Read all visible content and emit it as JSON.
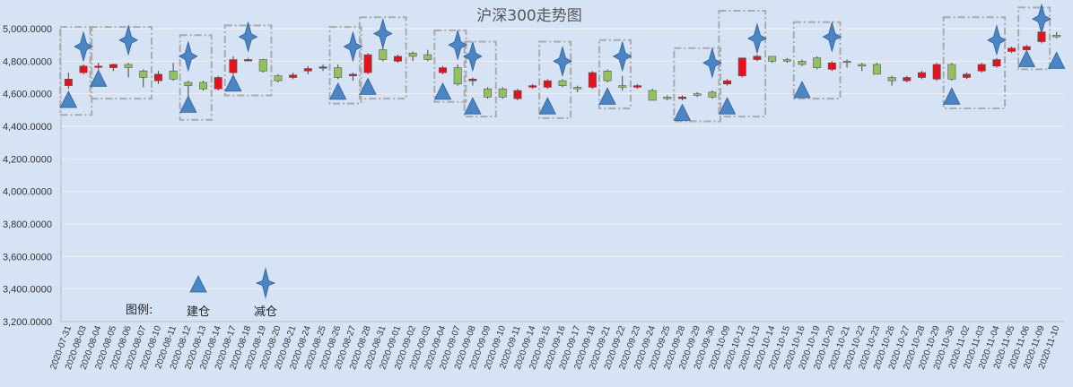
{
  "chart_data": {
    "type": "candlestick",
    "title": "沪深300走势图",
    "ylim": [
      3200,
      5000
    ],
    "yticks": [
      3200,
      3400,
      3600,
      3800,
      4000,
      4200,
      4400,
      4600,
      4800,
      5000
    ],
    "ytick_labels": [
      "3,200.0000",
      "3,400.0000",
      "3,600.0000",
      "3,800.0000",
      "4,000.0000",
      "4,200.0000",
      "4,400.0000",
      "4,600.0000",
      "4,800.0000",
      "5,000.0000"
    ],
    "grid": true,
    "colors": {
      "up": "#e8101a",
      "down": "#92c35a",
      "marker": "#4a86c5",
      "grid": "#f0f0f0",
      "box": "#aaaaaa",
      "background": "#d6e3f5"
    },
    "legend": {
      "title": "图例:",
      "items": [
        {
          "label": "建仓",
          "marker": "triangle-icon"
        },
        {
          "label": "减仓",
          "marker": "star-icon"
        }
      ]
    },
    "candles": [
      {
        "d": "2020-07-31",
        "o": 4650,
        "c": 4690,
        "h": 4730,
        "l": 4630
      },
      {
        "d": "2020-08-03",
        "o": 4730,
        "c": 4770,
        "h": 4780,
        "l": 4720
      },
      {
        "d": "2020-08-04",
        "o": 4770,
        "c": 4770,
        "h": 4790,
        "l": 4750
      },
      {
        "d": "2020-08-05",
        "o": 4760,
        "c": 4780,
        "h": 4785,
        "l": 4740
      },
      {
        "d": "2020-08-06",
        "o": 4780,
        "c": 4760,
        "h": 4790,
        "l": 4700
      },
      {
        "d": "2020-08-07",
        "o": 4740,
        "c": 4700,
        "h": 4750,
        "l": 4640
      },
      {
        "d": "2020-08-10",
        "o": 4680,
        "c": 4720,
        "h": 4740,
        "l": 4660
      },
      {
        "d": "2020-08-11",
        "o": 4740,
        "c": 4690,
        "h": 4790,
        "l": 4680
      },
      {
        "d": "2020-08-12",
        "o": 4670,
        "c": 4650,
        "h": 4680,
        "l": 4580
      },
      {
        "d": "2020-08-13",
        "o": 4670,
        "c": 4630,
        "h": 4680,
        "l": 4620
      },
      {
        "d": "2020-08-14",
        "o": 4630,
        "c": 4700,
        "h": 4710,
        "l": 4620
      },
      {
        "d": "2020-08-17",
        "o": 4730,
        "c": 4810,
        "h": 4830,
        "l": 4720
      },
      {
        "d": "2020-08-18",
        "o": 4810,
        "c": 4810,
        "h": 4820,
        "l": 4800
      },
      {
        "d": "2020-08-19",
        "o": 4810,
        "c": 4740,
        "h": 4815,
        "l": 4730
      },
      {
        "d": "2020-08-20",
        "o": 4710,
        "c": 4680,
        "h": 4720,
        "l": 4670
      },
      {
        "d": "2020-08-21",
        "o": 4700,
        "c": 4715,
        "h": 4730,
        "l": 4690
      },
      {
        "d": "2020-08-24",
        "o": 4740,
        "c": 4755,
        "h": 4770,
        "l": 4720
      },
      {
        "d": "2020-08-25",
        "o": 4760,
        "c": 4765,
        "h": 4780,
        "l": 4740
      },
      {
        "d": "2020-08-26",
        "o": 4760,
        "c": 4700,
        "h": 4780,
        "l": 4690
      },
      {
        "d": "2020-08-27",
        "o": 4710,
        "c": 4720,
        "h": 4730,
        "l": 4680
      },
      {
        "d": "2020-08-28",
        "o": 4730,
        "c": 4840,
        "h": 4850,
        "l": 4720
      },
      {
        "d": "2020-08-31",
        "o": 4870,
        "c": 4810,
        "h": 4900,
        "l": 4800
      },
      {
        "d": "2020-09-01",
        "o": 4800,
        "c": 4830,
        "h": 4840,
        "l": 4790
      },
      {
        "d": "2020-09-02",
        "o": 4850,
        "c": 4830,
        "h": 4860,
        "l": 4800
      },
      {
        "d": "2020-09-03",
        "o": 4840,
        "c": 4810,
        "h": 4870,
        "l": 4800
      },
      {
        "d": "2020-09-04",
        "o": 4730,
        "c": 4760,
        "h": 4770,
        "l": 4720
      },
      {
        "d": "2020-09-07",
        "o": 4760,
        "c": 4660,
        "h": 4780,
        "l": 4650
      },
      {
        "d": "2020-09-08",
        "o": 4680,
        "c": 4690,
        "h": 4700,
        "l": 4650
      },
      {
        "d": "2020-09-09",
        "o": 4630,
        "c": 4580,
        "h": 4640,
        "l": 4570
      },
      {
        "d": "2020-09-10",
        "o": 4630,
        "c": 4580,
        "h": 4640,
        "l": 4570
      },
      {
        "d": "2020-09-11",
        "o": 4570,
        "c": 4620,
        "h": 4630,
        "l": 4560
      },
      {
        "d": "2020-09-14",
        "o": 4640,
        "c": 4650,
        "h": 4660,
        "l": 4630
      },
      {
        "d": "2020-09-15",
        "o": 4640,
        "c": 4680,
        "h": 4690,
        "l": 4630
      },
      {
        "d": "2020-09-16",
        "o": 4680,
        "c": 4650,
        "h": 4690,
        "l": 4640
      },
      {
        "d": "2020-09-17",
        "o": 4640,
        "c": 4630,
        "h": 4650,
        "l": 4610
      },
      {
        "d": "2020-09-18",
        "o": 4640,
        "c": 4730,
        "h": 4740,
        "l": 4630
      },
      {
        "d": "2020-09-21",
        "o": 4740,
        "c": 4680,
        "h": 4750,
        "l": 4670
      },
      {
        "d": "2020-09-22",
        "o": 4650,
        "c": 4640,
        "h": 4710,
        "l": 4620
      },
      {
        "d": "2020-09-23",
        "o": 4640,
        "c": 4650,
        "h": 4660,
        "l": 4630
      },
      {
        "d": "2020-09-24",
        "o": 4620,
        "c": 4560,
        "h": 4630,
        "l": 4560
      },
      {
        "d": "2020-09-25",
        "o": 4580,
        "c": 4570,
        "h": 4590,
        "l": 4560
      },
      {
        "d": "2020-09-28",
        "o": 4570,
        "c": 4580,
        "h": 4590,
        "l": 4560
      },
      {
        "d": "2020-09-29",
        "o": 4600,
        "c": 4590,
        "h": 4610,
        "l": 4580
      },
      {
        "d": "2020-09-30",
        "o": 4610,
        "c": 4580,
        "h": 4620,
        "l": 4570
      },
      {
        "d": "2020-10-09",
        "o": 4660,
        "c": 4680,
        "h": 4690,
        "l": 4650
      },
      {
        "d": "2020-10-12",
        "o": 4710,
        "c": 4820,
        "h": 4820,
        "l": 4700
      },
      {
        "d": "2020-10-13",
        "o": 4810,
        "c": 4830,
        "h": 4840,
        "l": 4800
      },
      {
        "d": "2020-10-14",
        "o": 4830,
        "c": 4800,
        "h": 4830,
        "l": 4790
      },
      {
        "d": "2020-10-15",
        "o": 4810,
        "c": 4800,
        "h": 4820,
        "l": 4790
      },
      {
        "d": "2020-10-16",
        "o": 4800,
        "c": 4780,
        "h": 4810,
        "l": 4770
      },
      {
        "d": "2020-10-19",
        "o": 4820,
        "c": 4760,
        "h": 4830,
        "l": 4750
      },
      {
        "d": "2020-10-20",
        "o": 4750,
        "c": 4790,
        "h": 4800,
        "l": 4740
      },
      {
        "d": "2020-10-21",
        "o": 4800,
        "c": 4795,
        "h": 4810,
        "l": 4760
      },
      {
        "d": "2020-10-22",
        "o": 4780,
        "c": 4770,
        "h": 4790,
        "l": 4740
      },
      {
        "d": "2020-10-23",
        "o": 4780,
        "c": 4720,
        "h": 4790,
        "l": 4720
      },
      {
        "d": "2020-10-26",
        "o": 4700,
        "c": 4680,
        "h": 4710,
        "l": 4650
      },
      {
        "d": "2020-10-27",
        "o": 4680,
        "c": 4700,
        "h": 4710,
        "l": 4670
      },
      {
        "d": "2020-10-28",
        "o": 4700,
        "c": 4730,
        "h": 4740,
        "l": 4690
      },
      {
        "d": "2020-10-29",
        "o": 4690,
        "c": 4780,
        "h": 4790,
        "l": 4680
      },
      {
        "d": "2020-10-30",
        "o": 4780,
        "c": 4690,
        "h": 4790,
        "l": 4680
      },
      {
        "d": "2020-11-02",
        "o": 4700,
        "c": 4720,
        "h": 4730,
        "l": 4690
      },
      {
        "d": "2020-11-03",
        "o": 4740,
        "c": 4780,
        "h": 4790,
        "l": 4730
      },
      {
        "d": "2020-11-04",
        "o": 4770,
        "c": 4810,
        "h": 4820,
        "l": 4760
      },
      {
        "d": "2020-11-05",
        "o": 4860,
        "c": 4880,
        "h": 4890,
        "l": 4850
      },
      {
        "d": "2020-11-06",
        "o": 4870,
        "c": 4890,
        "h": 4900,
        "l": 4860
      },
      {
        "d": "2020-11-09",
        "o": 4920,
        "c": 4980,
        "h": 4990,
        "l": 4910
      },
      {
        "d": "2020-11-10",
        "o": 4960,
        "c": 4950,
        "h": 4980,
        "l": 4940
      }
    ],
    "tick_labels": [
      "2020-07-31",
      "2020-08-03",
      "2020-08-04",
      "2020-08-05",
      "2020-08-06",
      "2020-08-07",
      "2020-08-10",
      "2020-08-11",
      "2020-08-12",
      "2020-08-13",
      "2020-08-14",
      "2020-08-17",
      "2020-08-18",
      "2020-08-19",
      "2020-08-20",
      "2020-08-21",
      "2020-08-24",
      "2020-08-25",
      "2020-08-26",
      "2020-08-27",
      "2020-08-28",
      "2020-08-31",
      "2020-09-01",
      "2020-09-02",
      "2020-09-03",
      "2020-09-04",
      "2020-09-07",
      "2020-09-08",
      "2020-09-09",
      "2020-09-10",
      "2020-09-11",
      "2020-09-14",
      "2020-09-15",
      "2020-09-16",
      "2020-09-17",
      "2020-09-18",
      "2020-09-21",
      "2020-09-22",
      "2020-09-23",
      "2020-09-24",
      "2020-09-25",
      "2020-09-28",
      "2020-09-29",
      "2020-09-30",
      "2020-10-09",
      "2020-10-12",
      "2020-10-13",
      "2020-10-14",
      "2020-10-15",
      "2020-10-16",
      "2020-10-19",
      "2020-10-20",
      "2020-10-21",
      "2020-10-22",
      "2020-10-23",
      "2020-10-26",
      "2020-10-27",
      "2020-10-28",
      "2020-10-29",
      "2020-10-30",
      "2020-11-02",
      "2020-11-03",
      "2020-11-04",
      "2020-11-05",
      "2020-11-06",
      "2020-11-09",
      "2020-11-10"
    ],
    "buy_markers": [
      {
        "d": "2020-07-31",
        "v": 4560
      },
      {
        "d": "2020-08-04",
        "v": 4690
      },
      {
        "d": "2020-08-12",
        "v": 4530
      },
      {
        "d": "2020-08-17",
        "v": 4660
      },
      {
        "d": "2020-08-26",
        "v": 4610
      },
      {
        "d": "2020-08-28",
        "v": 4640
      },
      {
        "d": "2020-09-04",
        "v": 4610
      },
      {
        "d": "2020-09-08",
        "v": 4520
      },
      {
        "d": "2020-09-15",
        "v": 4520
      },
      {
        "d": "2020-09-21",
        "v": 4580
      },
      {
        "d": "2020-09-28",
        "v": 4480
      },
      {
        "d": "2020-10-09",
        "v": 4520
      },
      {
        "d": "2020-10-16",
        "v": 4620
      },
      {
        "d": "2020-10-30",
        "v": 4580
      },
      {
        "d": "2020-11-06",
        "v": 4810
      },
      {
        "d": "2020-11-10",
        "v": 4800
      }
    ],
    "sell_markers": [
      {
        "d": "2020-08-03",
        "v": 4890
      },
      {
        "d": "2020-08-06",
        "v": 4930
      },
      {
        "d": "2020-08-12",
        "v": 4830
      },
      {
        "d": "2020-08-18",
        "v": 4950
      },
      {
        "d": "2020-08-27",
        "v": 4890
      },
      {
        "d": "2020-08-31",
        "v": 4970
      },
      {
        "d": "2020-09-07",
        "v": 4900
      },
      {
        "d": "2020-09-08",
        "v": 4830
      },
      {
        "d": "2020-09-16",
        "v": 4800
      },
      {
        "d": "2020-09-22",
        "v": 4830
      },
      {
        "d": "2020-09-30",
        "v": 4790
      },
      {
        "d": "2020-10-13",
        "v": 4940
      },
      {
        "d": "2020-10-20",
        "v": 4950
      },
      {
        "d": "2020-11-04",
        "v": 4930
      },
      {
        "d": "2020-11-09",
        "v": 5060
      }
    ],
    "trade_boxes": [
      {
        "from": "2020-07-31",
        "to": "2020-08-03",
        "low": 4470,
        "high": 5010
      },
      {
        "from": "2020-08-04",
        "to": "2020-08-07",
        "low": 4570,
        "high": 5010
      },
      {
        "from": "2020-08-12",
        "to": "2020-08-13",
        "low": 4440,
        "high": 4960
      },
      {
        "from": "2020-08-17",
        "to": "2020-08-19",
        "low": 4590,
        "high": 5020
      },
      {
        "from": "2020-08-26",
        "to": "2020-08-27",
        "low": 4540,
        "high": 5010
      },
      {
        "from": "2020-08-28",
        "to": "2020-09-01",
        "low": 4570,
        "high": 5070
      },
      {
        "from": "2020-09-04",
        "to": "2020-09-07",
        "low": 4550,
        "high": 4990
      },
      {
        "from": "2020-09-08",
        "to": "2020-09-09",
        "low": 4460,
        "high": 4920
      },
      {
        "from": "2020-09-15",
        "to": "2020-09-16",
        "low": 4450,
        "high": 4920
      },
      {
        "from": "2020-09-21",
        "to": "2020-09-22",
        "low": 4510,
        "high": 4930
      },
      {
        "from": "2020-09-28",
        "to": "2020-09-30",
        "low": 4430,
        "high": 4880
      },
      {
        "from": "2020-10-09",
        "to": "2020-10-13",
        "low": 4460,
        "high": 5110
      },
      {
        "from": "2020-10-16",
        "to": "2020-10-20",
        "low": 4570,
        "high": 5040
      },
      {
        "from": "2020-10-30",
        "to": "2020-11-04",
        "low": 4510,
        "high": 5070
      },
      {
        "from": "2020-11-06",
        "to": "2020-11-09",
        "low": 4750,
        "high": 5130
      }
    ]
  }
}
